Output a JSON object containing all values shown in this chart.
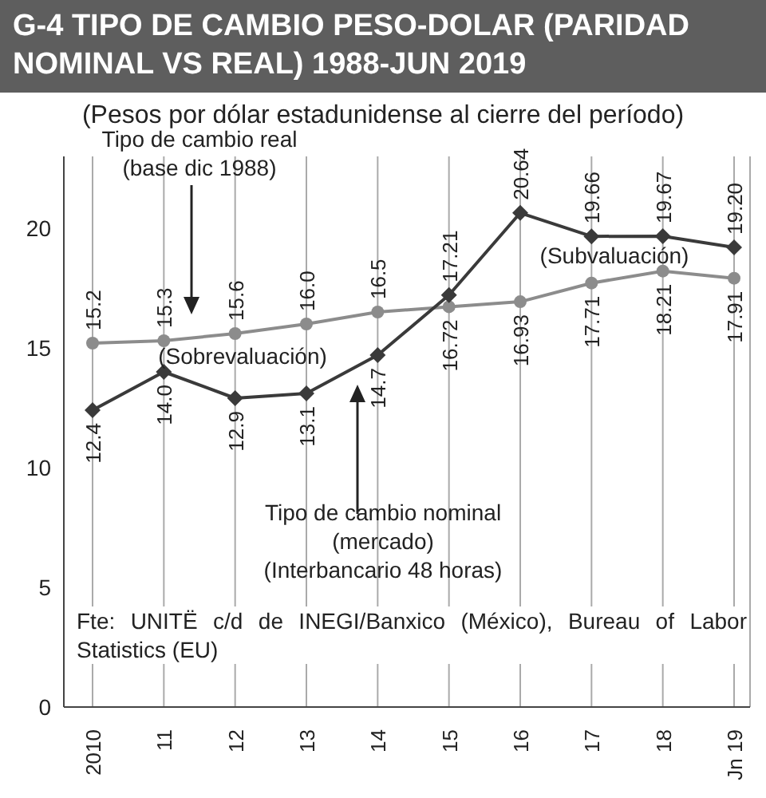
{
  "chart_data": {
    "type": "line",
    "title": "G-4 TIPO DE CAMBIO PESO-DOLAR (PARIDAD NOMINAL VS REAL) 1988-JUN 2019",
    "subtitle": "(Pesos por dólar estadunidense al cierre del período)",
    "categories": [
      "2010",
      "11",
      "12",
      "13",
      "14",
      "15",
      "16",
      "17",
      "18",
      "Jn 19"
    ],
    "series": [
      {
        "color": "#8c8c8c",
        "marker": "circle",
        "values": [
          15.2,
          15.3,
          15.6,
          16.0,
          16.5,
          16.72,
          16.93,
          17.71,
          18.21,
          17.91
        ],
        "value_labels": [
          "15.2",
          "15.3",
          "15.6",
          "16.0",
          "16.5",
          "16.72",
          "16.93",
          "17.71",
          "18.21",
          "17.91"
        ]
      },
      {
        "color": "#3a3a3a",
        "marker": "diamond",
        "values": [
          12.4,
          14.0,
          12.9,
          13.1,
          14.7,
          17.21,
          20.64,
          19.66,
          19.67,
          19.2
        ],
        "value_labels": [
          "12.4",
          "14.0",
          "12.9",
          "13.1",
          "14.7",
          "17.21",
          "20.64",
          "19.66",
          "19.67",
          "19.20"
        ]
      }
    ],
    "ylim": [
      0,
      23
    ],
    "yticks": [
      0,
      5,
      10,
      15,
      20
    ],
    "grid": "x",
    "line_style": "solid",
    "annotations": [
      "Tipo de cambio real\n(base dic 1988)",
      "(Sobrevaluación)",
      "(Subvaluación)",
      "Tipo de cambio nominal\n(mercado)\n(Interbancario 48 horas)",
      "Fte: UNITË c/d de INEGI/Banxico (México), Bureau of Labor Statistics (EU)"
    ]
  }
}
